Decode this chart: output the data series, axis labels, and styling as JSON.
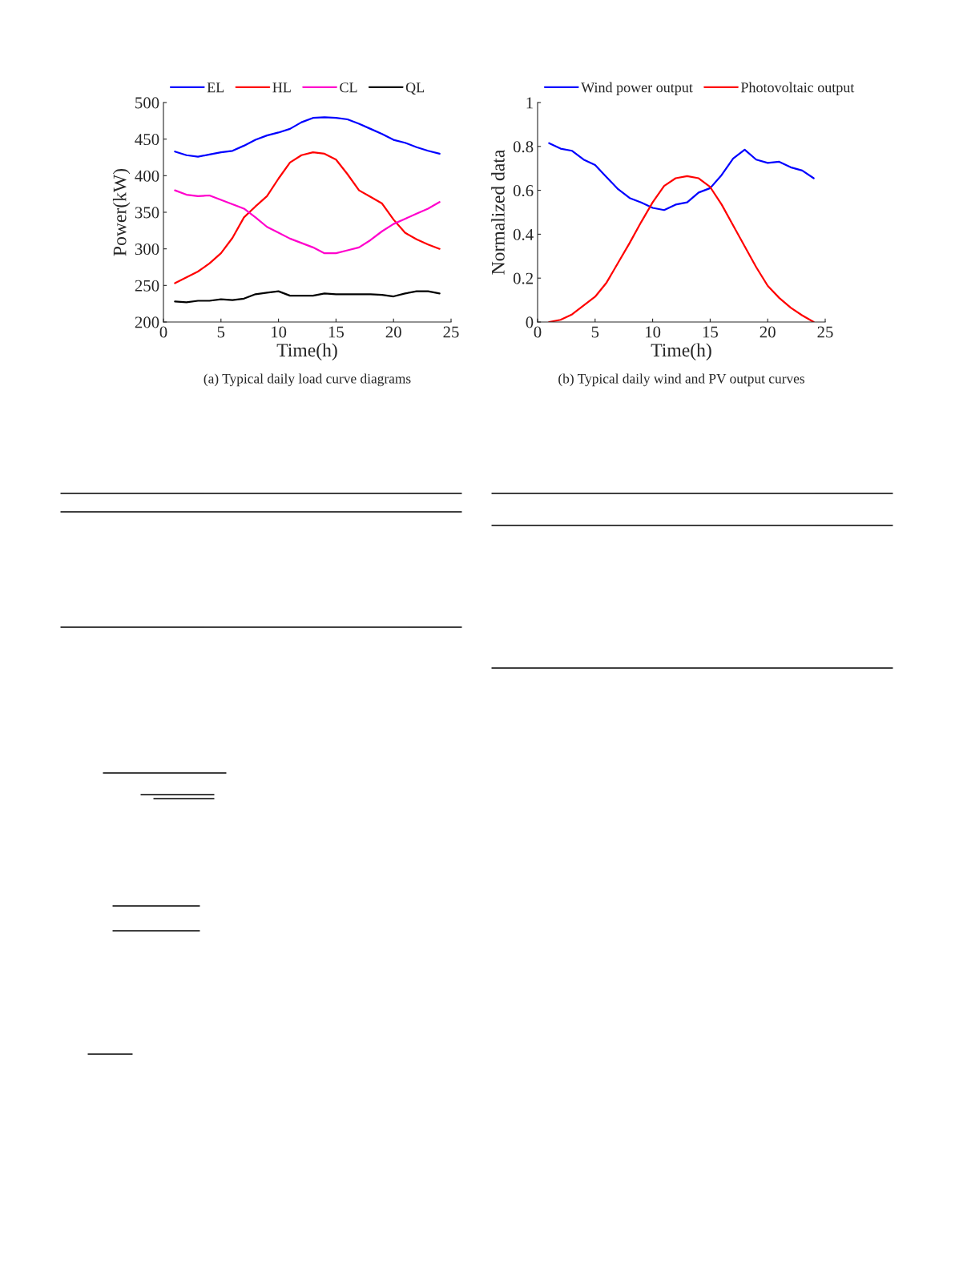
{
  "chart_data": [
    {
      "type": "line",
      "xlabel": "Time(h)",
      "ylabel": "Power(kW)",
      "annotations": [
        "(a) Typical daily load curve diagrams"
      ],
      "x": [
        1,
        2,
        3,
        4,
        5,
        6,
        7,
        8,
        9,
        10,
        11,
        12,
        13,
        14,
        15,
        16,
        17,
        18,
        19,
        20,
        21,
        22,
        23,
        24
      ],
      "xlim": [
        0,
        25
      ],
      "xticks": [
        0,
        5,
        10,
        15,
        20,
        25
      ],
      "ylim": [
        200,
        500
      ],
      "yticks": [
        200,
        250,
        300,
        350,
        400,
        450,
        500
      ],
      "grid": false,
      "legend": "top",
      "marker": "none",
      "line_style": "solid",
      "series": [
        {
          "name": "EL",
          "color": "#0000ff",
          "values": [
            433,
            428,
            426,
            429,
            432,
            434,
            441,
            449,
            455,
            459,
            464,
            473,
            479,
            480,
            479,
            477,
            471,
            464,
            457,
            449,
            445,
            439,
            434,
            430
          ]
        },
        {
          "name": "HL",
          "color": "#ff0000",
          "values": [
            253,
            261,
            269,
            280,
            294,
            315,
            343,
            358,
            372,
            396,
            418,
            428,
            432,
            430,
            422,
            402,
            380,
            371,
            362,
            340,
            322,
            313,
            306,
            300
          ]
        },
        {
          "name": "CL",
          "color": "#ff00cc",
          "values": [
            380,
            374,
            372,
            373,
            367,
            361,
            355,
            343,
            330,
            322,
            314,
            308,
            302,
            294,
            294,
            298,
            302,
            312,
            324,
            334,
            341,
            348,
            355,
            364
          ]
        },
        {
          "name": "QL",
          "color": "#000000",
          "values": [
            228,
            227,
            229,
            229,
            231,
            230,
            232,
            238,
            240,
            242,
            236,
            236,
            236,
            239,
            238,
            238,
            238,
            238,
            237,
            235,
            239,
            242,
            242,
            239
          ]
        }
      ]
    },
    {
      "type": "line",
      "xlabel": "Time(h)",
      "ylabel": "Normalized data",
      "annotations": [
        "(b) Typical daily wind and PV output curves"
      ],
      "x": [
        1,
        2,
        3,
        4,
        5,
        6,
        7,
        8,
        9,
        10,
        11,
        12,
        13,
        14,
        15,
        16,
        17,
        18,
        19,
        20,
        21,
        22,
        23,
        24
      ],
      "xlim": [
        0,
        25
      ],
      "xticks": [
        0,
        5,
        10,
        15,
        20,
        25
      ],
      "ylim": [
        0,
        1
      ],
      "yticks": [
        0,
        0.2,
        0.4,
        0.6,
        0.8,
        1
      ],
      "grid": false,
      "legend": "top",
      "marker": "none",
      "line_style": "solid",
      "series": [
        {
          "name": "Wind power output",
          "color": "#0000ff",
          "values": [
            0.815,
            0.79,
            0.78,
            0.74,
            0.715,
            0.66,
            0.605,
            0.565,
            0.545,
            0.52,
            0.51,
            0.535,
            0.545,
            0.59,
            0.61,
            0.67,
            0.745,
            0.785,
            0.74,
            0.725,
            0.73,
            0.705,
            0.69,
            0.655
          ]
        },
        {
          "name": "Photovoltaic output",
          "color": "#ff0000",
          "values": [
            0,
            0.01,
            0.035,
            0.075,
            0.115,
            0.18,
            0.27,
            0.36,
            0.455,
            0.545,
            0.62,
            0.655,
            0.665,
            0.655,
            0.615,
            0.535,
            0.44,
            0.345,
            0.25,
            0.165,
            0.11,
            0.065,
            0.03,
            0
          ]
        }
      ]
    }
  ]
}
